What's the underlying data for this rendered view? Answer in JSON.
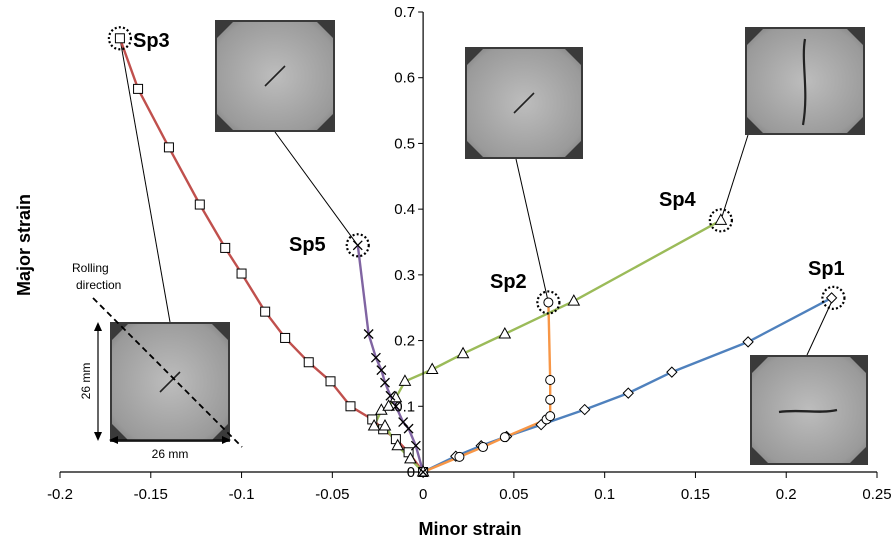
{
  "chart_data": {
    "type": "line",
    "xlabel": "Minor strain",
    "ylabel": "Major strain",
    "xlim": [
      -0.2,
      0.25
    ],
    "ylim": [
      0,
      0.7
    ],
    "x_ticks": [
      -0.2,
      -0.15,
      -0.1,
      -0.05,
      0,
      0.05,
      0.1,
      0.15,
      0.2,
      0.25
    ],
    "x_tick_labels": [
      "-0.2",
      "-0.15",
      "-0.1",
      "-0.05",
      "0",
      "0.05",
      "0.1",
      "0.15",
      "0.2",
      "0.25"
    ],
    "y_ticks": [
      0,
      0.1,
      0.2,
      0.3,
      0.4,
      0.5,
      0.6,
      0.7
    ],
    "y_tick_labels": [
      "0",
      "0.1",
      "0.2",
      "0.3",
      "0.4",
      "0.5",
      "0.6",
      "0.7"
    ],
    "grid": false,
    "series": [
      {
        "name": "Sp1",
        "color": "#4f81bd",
        "marker": "diamond",
        "x": [
          0,
          0.018,
          0.032,
          0.046,
          0.065,
          0.089,
          0.113,
          0.137,
          0.179,
          0.225
        ],
        "y": [
          0,
          0.024,
          0.04,
          0.054,
          0.072,
          0.095,
          0.12,
          0.152,
          0.198,
          0.265
        ],
        "fail_x": 0.226,
        "fail_y": 0.265
      },
      {
        "name": "Sp2",
        "color": "#f79646",
        "marker": "circle",
        "x": [
          0,
          0.02,
          0.033,
          0.045,
          0.068,
          0.07,
          0.07,
          0.07,
          0.069
        ],
        "y": [
          0,
          0.023,
          0.038,
          0.053,
          0.08,
          0.085,
          0.11,
          0.14,
          0.258
        ],
        "fail_x": 0.069,
        "fail_y": 0.258
      },
      {
        "name": "Sp3",
        "color": "#c0504d",
        "marker": "square",
        "x": [
          0,
          -0.008,
          -0.015,
          -0.022,
          -0.028,
          -0.04,
          -0.051,
          -0.063,
          -0.076,
          -0.087,
          -0.1,
          -0.109,
          -0.123,
          -0.14,
          -0.157,
          -0.167
        ],
        "y": [
          0,
          0.03,
          0.05,
          0.065,
          0.08,
          0.1,
          0.138,
          0.167,
          0.204,
          0.244,
          0.302,
          0.341,
          0.407,
          0.494,
          0.583,
          0.66
        ],
        "fail_x": -0.167,
        "fail_y": 0.66
      },
      {
        "name": "Sp4",
        "color": "#9bbb59",
        "marker": "triangle",
        "x": [
          0,
          -0.007,
          -0.014,
          -0.021,
          -0.027,
          -0.023,
          -0.019,
          -0.015,
          -0.01,
          0.005,
          0.022,
          0.045,
          0.083,
          0.164
        ],
        "y": [
          0,
          0.02,
          0.04,
          0.07,
          0.07,
          0.094,
          0.1,
          0.113,
          0.138,
          0.156,
          0.18,
          0.21,
          0.26,
          0.383
        ],
        "fail_x": 0.164,
        "fail_y": 0.383
      },
      {
        "name": "Sp5",
        "color": "#8064a2",
        "marker": "x",
        "x": [
          0,
          -0.004,
          -0.008,
          -0.011,
          -0.015,
          -0.018,
          -0.021,
          -0.023,
          -0.026,
          -0.03,
          -0.036
        ],
        "y": [
          0,
          0.04,
          0.066,
          0.076,
          0.1,
          0.116,
          0.136,
          0.155,
          0.174,
          0.21,
          0.345
        ],
        "fail_x": -0.036,
        "fail_y": 0.345
      }
    ],
    "annotations": {
      "rolling_direction": "Rolling\ndirection",
      "dim_vertical": "26 mm",
      "dim_horizontal": "26 mm"
    }
  }
}
